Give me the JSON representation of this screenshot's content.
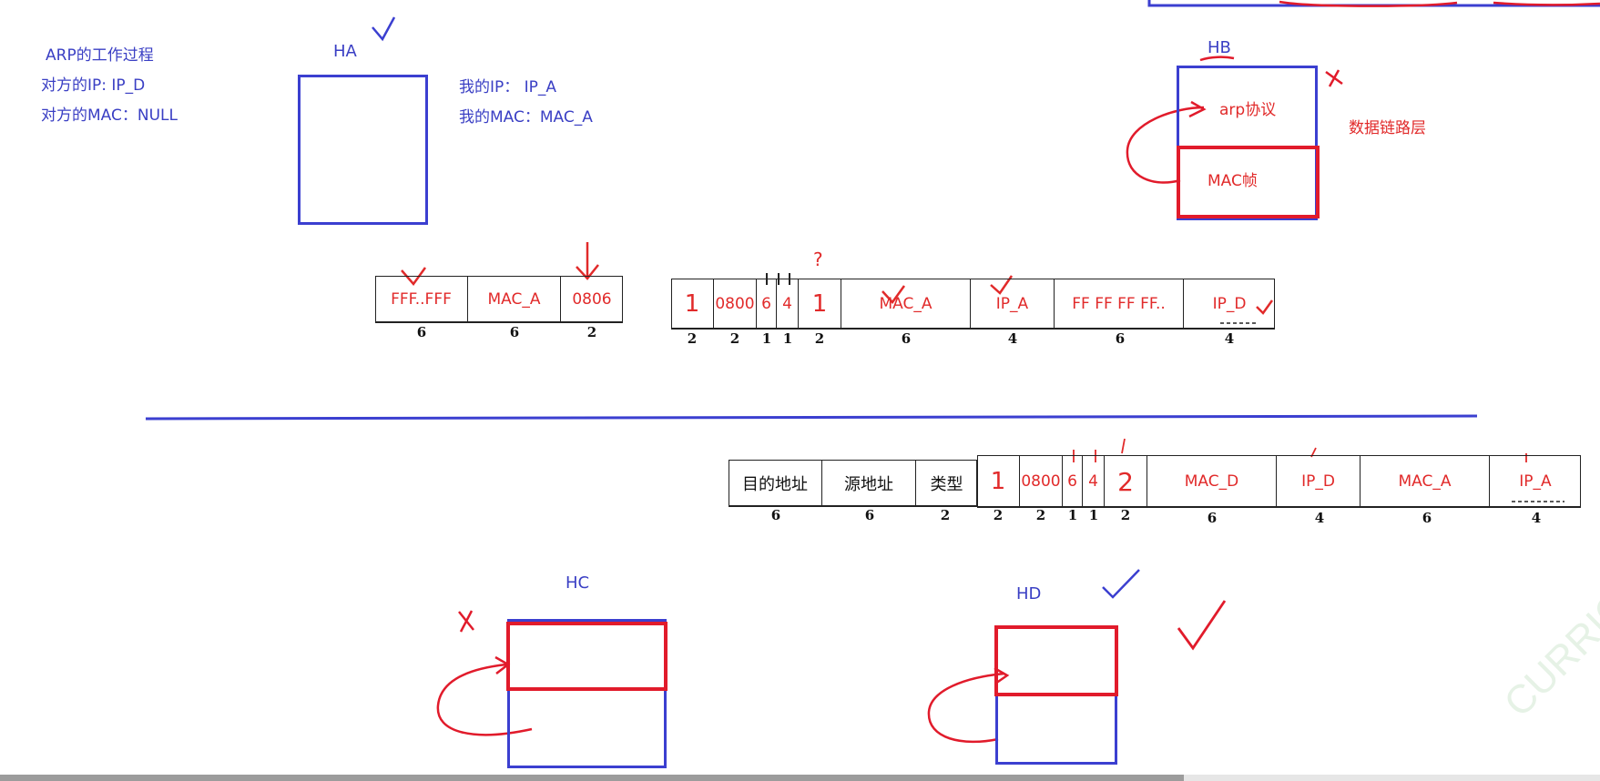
{
  "left_notes": {
    "title": "ARP的工作过程",
    "peer_ip": "对方的IP: IP_D",
    "peer_mac": "对方的MAC：NULL"
  },
  "my_info": {
    "my_ip": "我的IP：  IP_A",
    "my_mac": "我的MAC：MAC_A"
  },
  "hosts": {
    "ha": "HA",
    "hb": "HB",
    "hc": "HC",
    "hd": "HD"
  },
  "hb_layers": {
    "arp": "arp协议",
    "mac_frame": "MAC帧",
    "data_link": "数据链路层"
  },
  "request_frame": {
    "cells": [
      "FFF..FFF",
      "MAC_A",
      "0806"
    ],
    "sizes": [
      "6",
      "6",
      "2"
    ]
  },
  "request_arp": {
    "cells": [
      "1",
      "0800",
      "6",
      "4",
      "1",
      "MAC_A",
      "IP_A",
      "FF FF FF FF..",
      "IP_D"
    ],
    "sizes": [
      "2",
      "2",
      "1",
      "1",
      "2",
      "6",
      "4",
      "6",
      "4"
    ]
  },
  "reply_frame": {
    "cells": [
      "目的地址",
      "源地址",
      "类型"
    ],
    "sizes": [
      "6",
      "6",
      "2"
    ]
  },
  "reply_arp": {
    "cells": [
      "1",
      "0800",
      "6",
      "4",
      "2",
      "MAC_D",
      "IP_D",
      "MAC_A",
      "IP_A"
    ],
    "sizes": [
      "2",
      "2",
      "1",
      "1",
      "2",
      "6",
      "4",
      "6",
      "4"
    ]
  },
  "annotations": {
    "question_mark": "?"
  },
  "colors": {
    "blue": "#3b3fd0",
    "red": "#e11b2b",
    "ink": "#222222"
  }
}
